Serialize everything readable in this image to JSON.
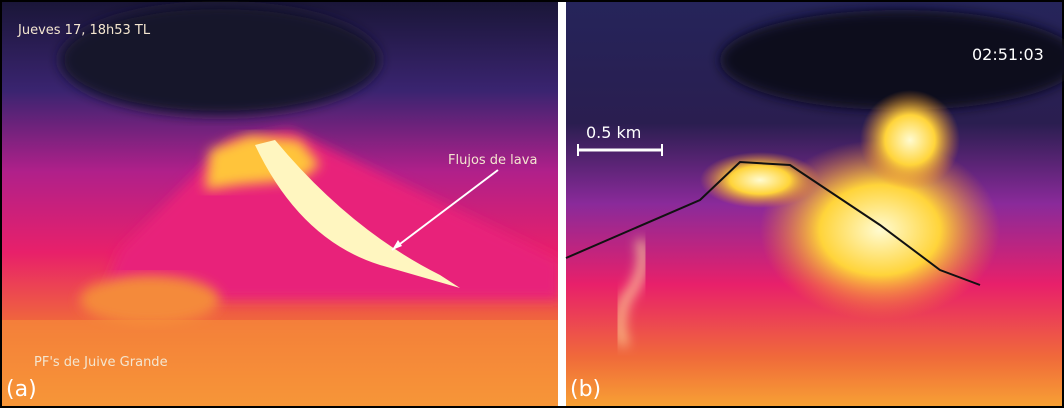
{
  "panel_a": {
    "timestamp": "Jueves 17, 18h53 TL",
    "annotation": "Flujos de lava",
    "location": "PF's de Juive Grande",
    "label": "(a)"
  },
  "panel_b": {
    "timestamp": "02:51:03",
    "scale_bar": "0.5 km",
    "label": "(b)"
  }
}
